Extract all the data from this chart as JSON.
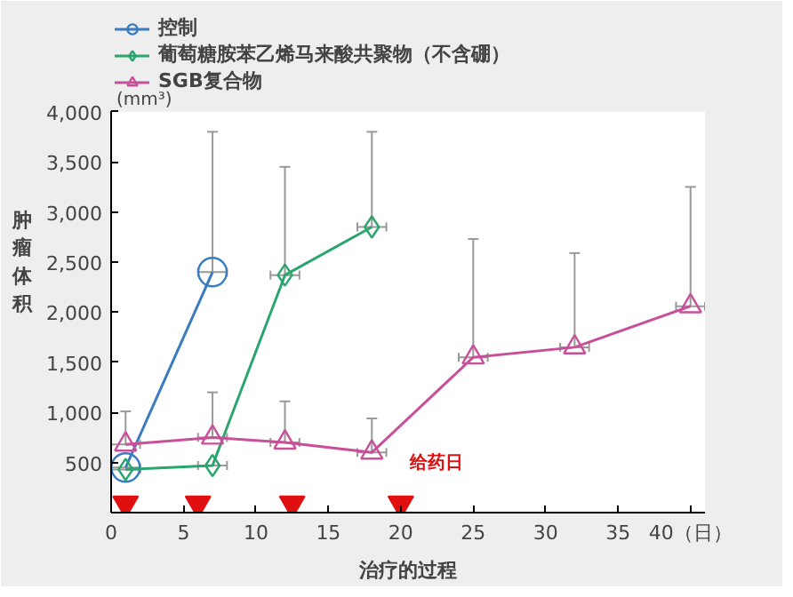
{
  "chart_data": {
    "type": "line",
    "xlabel": "治疗的过程",
    "ylabel": "肿瘤体积",
    "annotations": [
      "(mm³)",
      "给药日"
    ],
    "xlim": [
      0,
      41
    ],
    "ylim": [
      0,
      4000
    ],
    "xticks": [
      0,
      5,
      10,
      15,
      20,
      25,
      30,
      35,
      {
        "value": 40,
        "label": "40（日）"
      }
    ],
    "yticks": [
      500,
      {
        "value": 1000,
        "label": "1,000"
      },
      {
        "value": 1500,
        "label": "1,500"
      },
      {
        "value": 2000,
        "label": "2,000"
      },
      {
        "value": 2500,
        "label": "2,500"
      },
      {
        "value": 3000,
        "label": "3,000"
      },
      {
        "value": 3500,
        "label": "3,500"
      },
      {
        "value": 4000,
        "label": "4,000"
      }
    ],
    "grid": false,
    "legend": "top left",
    "series": [
      {
        "name": "控制",
        "color": "#3a7cc0",
        "marker": "circle",
        "x": [
          1,
          7
        ],
        "values": [
          450,
          2400
        ],
        "errors": [
          null,
          [
            2400,
            3800
          ]
        ],
        "xerrors": [
          1,
          1
        ]
      },
      {
        "name": "葡萄糖胺苯乙烯马来酸共聚物（不含硼）",
        "color": "#2aa56e",
        "marker": "diamond",
        "x": [
          1,
          7,
          12,
          18
        ],
        "values": [
          430,
          470,
          2370,
          2850
        ],
        "errors": [
          null,
          null,
          [
            2370,
            3450
          ],
          [
            2850,
            3800
          ]
        ],
        "xerrors": [
          1,
          1,
          1,
          1
        ]
      },
      {
        "name": "SGB复合物",
        "color": "#c8509a",
        "marker": "triangle",
        "x": [
          1,
          7,
          12,
          18,
          25,
          32,
          40
        ],
        "values": [
          680,
          750,
          700,
          600,
          1550,
          1650,
          2060
        ],
        "errors": [
          [
            680,
            1010
          ],
          [
            750,
            1200
          ],
          [
            700,
            1110
          ],
          [
            600,
            940
          ],
          [
            1550,
            2730
          ],
          [
            1650,
            2590
          ],
          [
            2060,
            3250
          ]
        ],
        "xerrors": [
          1,
          1,
          1,
          1,
          1,
          1,
          1
        ]
      },
      {
        "type": "scatter",
        "marker": "triangle",
        "color": "#e01010",
        "x": [
          1,
          6,
          12.5,
          20
        ],
        "values": [
          90,
          90,
          90,
          90
        ]
      }
    ]
  }
}
